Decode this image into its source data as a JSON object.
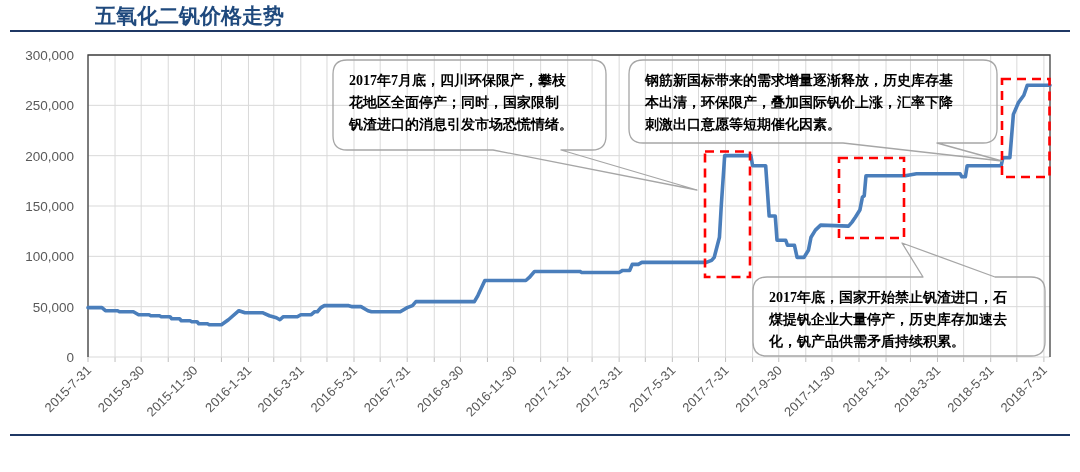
{
  "chart_data": {
    "type": "line",
    "title": "五氧化二钒价格走势",
    "x": [
      "2015-07-31",
      "2015-08-16",
      "2015-08-20",
      "2015-09-03",
      "2015-09-05",
      "2015-09-21",
      "2015-09-27",
      "2015-10-09",
      "2015-10-11",
      "2015-10-21",
      "2015-10-23",
      "2015-11-02",
      "2015-11-04",
      "2015-11-13",
      "2015-11-15",
      "2015-11-25",
      "2015-11-27",
      "2015-12-03",
      "2015-12-05",
      "2015-12-15",
      "2015-12-17",
      "2015-12-31",
      "2016-01-08",
      "2016-01-20",
      "2016-01-27",
      "2016-02-16",
      "2016-02-24",
      "2016-03-03",
      "2016-03-07",
      "2016-03-11",
      "2016-03-27",
      "2016-03-31",
      "2016-04-12",
      "2016-04-16",
      "2016-04-19",
      "2016-04-23",
      "2016-04-27",
      "2016-05-25",
      "2016-05-29",
      "2016-06-08",
      "2016-06-16",
      "2016-06-20",
      "2016-07-23",
      "2016-07-31",
      "2016-08-06",
      "2016-08-10",
      "2016-10-16",
      "2016-10-20",
      "2016-10-28",
      "2016-12-14",
      "2016-12-18",
      "2016-12-24",
      "2017-02-14",
      "2017-02-16",
      "2017-03-31",
      "2017-04-04",
      "2017-04-12",
      "2017-04-15",
      "2017-04-22",
      "2017-04-26",
      "2017-07-09",
      "2017-07-15",
      "2017-07-18",
      "2017-07-24",
      "2017-07-26",
      "2017-07-30",
      "2017-08-29",
      "2017-08-31",
      "2017-09-15",
      "2017-09-19",
      "2017-09-26",
      "2017-09-28",
      "2017-10-08",
      "2017-10-10",
      "2017-10-18",
      "2017-10-21",
      "2017-10-29",
      "2017-11-03",
      "2017-11-06",
      "2017-11-11",
      "2017-11-17",
      "2017-12-19",
      "2017-12-23",
      "2017-12-27",
      "2018-01-01",
      "2018-01-04",
      "2018-01-06",
      "2018-01-08",
      "2018-02-22",
      "2018-03-07",
      "2018-04-26",
      "2018-04-28",
      "2018-05-02",
      "2018-05-04",
      "2018-06-12",
      "2018-06-14",
      "2018-06-22",
      "2018-06-26",
      "2018-07-02",
      "2018-07-08",
      "2018-07-12",
      "2018-08-07"
    ],
    "series": [
      {
        "color": "#4a7ebb",
        "values": [
          49000,
          49000,
          46000,
          46000,
          45000,
          45000,
          42000,
          42000,
          41000,
          41000,
          40000,
          40000,
          38000,
          38000,
          36000,
          36000,
          35000,
          35000,
          33000,
          33000,
          32000,
          32000,
          37000,
          46000,
          44000,
          44000,
          41000,
          39000,
          37000,
          40000,
          40000,
          42000,
          42000,
          45000,
          45000,
          49000,
          51000,
          51000,
          50000,
          50000,
          46000,
          45000,
          45000,
          49000,
          51000,
          55000,
          55000,
          61000,
          76000,
          76000,
          79000,
          85000,
          85000,
          84000,
          84000,
          86000,
          86000,
          92000,
          92000,
          94000,
          94000,
          96000,
          99000,
          119000,
          149000,
          200000,
          200000,
          190000,
          190000,
          140000,
          140000,
          116000,
          116000,
          111000,
          111000,
          99000,
          99000,
          106000,
          119000,
          126000,
          131000,
          130000,
          134000,
          139000,
          146000,
          159000,
          160000,
          180000,
          180000,
          182000,
          182000,
          179000,
          179000,
          190000,
          190000,
          198000,
          198000,
          241000,
          253000,
          260000,
          270000,
          270000
        ]
      }
    ],
    "xlim": [
      "2015-07-31",
      "2018-08-07"
    ],
    "ylim": [
      0,
      300000
    ],
    "xticks": [
      {
        "value": "2015-07-31",
        "label": "2015-7-31"
      },
      {
        "value": "2015-08-31",
        "label": null
      },
      {
        "value": "2015-09-30",
        "label": "2015-9-30"
      },
      {
        "value": "2015-10-31",
        "label": null
      },
      {
        "value": "2015-11-30",
        "label": "2015-11-30"
      },
      {
        "value": "2015-12-31",
        "label": null
      },
      {
        "value": "2016-01-31",
        "label": "2016-1-31"
      },
      {
        "value": "2016-02-29",
        "label": null
      },
      {
        "value": "2016-03-31",
        "label": "2016-3-31"
      },
      {
        "value": "2016-04-30",
        "label": null
      },
      {
        "value": "2016-05-31",
        "label": "2016-5-31"
      },
      {
        "value": "2016-06-30",
        "label": null
      },
      {
        "value": "2016-07-31",
        "label": "2016-7-31"
      },
      {
        "value": "2016-08-31",
        "label": null
      },
      {
        "value": "2016-09-30",
        "label": "2016-9-30"
      },
      {
        "value": "2016-10-31",
        "label": null
      },
      {
        "value": "2016-11-30",
        "label": "2016-11-30"
      },
      {
        "value": "2016-12-31",
        "label": null
      },
      {
        "value": "2017-01-31",
        "label": "2017-1-31"
      },
      {
        "value": "2017-02-28",
        "label": null
      },
      {
        "value": "2017-03-31",
        "label": "2017-3-31"
      },
      {
        "value": "2017-04-30",
        "label": null
      },
      {
        "value": "2017-05-31",
        "label": "2017-5-31"
      },
      {
        "value": "2017-06-30",
        "label": null
      },
      {
        "value": "2017-07-31",
        "label": "2017-7-31"
      },
      {
        "value": "2017-08-31",
        "label": null
      },
      {
        "value": "2017-09-30",
        "label": "2017-9-30"
      },
      {
        "value": "2017-10-31",
        "label": null
      },
      {
        "value": "2017-11-30",
        "label": "2017-11-30"
      },
      {
        "value": "2017-12-31",
        "label": null
      },
      {
        "value": "2018-01-31",
        "label": "2018-1-31"
      },
      {
        "value": "2018-02-28",
        "label": null
      },
      {
        "value": "2018-03-31",
        "label": "2018-3-31"
      },
      {
        "value": "2018-04-30",
        "label": null
      },
      {
        "value": "2018-05-31",
        "label": "2018-5-31"
      },
      {
        "value": "2018-06-30",
        "label": null
      },
      {
        "value": "2018-07-31",
        "label": "2018-7-31"
      }
    ],
    "yticks": [
      0,
      {
        "value": 50000,
        "label": "50,000"
      },
      {
        "value": 100000,
        "label": "100,000"
      },
      {
        "value": 150000,
        "label": "150,000"
      },
      {
        "value": 200000,
        "label": "200,000"
      },
      {
        "value": 250000,
        "label": "250,000"
      },
      {
        "value": 300000,
        "label": "300,000"
      }
    ],
    "grid": true,
    "annotations": [
      "2017年7月底，四川环保限产，攀枝花地区全面停产；同时，国家限制钒渣进口的消息引发市场恐慌情绪。",
      "钢筋新国标带来的需求增量逐渐释放，历史库存基本出清，环保限产，叠加国际钒价上涨，汇率下降刺激出口意愿等短期催化因素。",
      "2017年底，国家开始禁止钒渣进口，石煤提钒企业大量停产，历史库存加速去化，钒产品供需矛盾持续积累。"
    ]
  }
}
